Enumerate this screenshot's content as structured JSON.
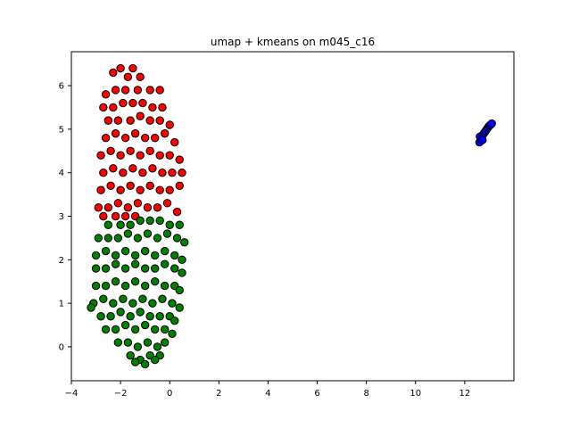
{
  "chart_data": {
    "type": "scatter",
    "title": "umap + kmeans on m045_c16",
    "xlabel": "",
    "ylabel": "",
    "xlim": [
      -4,
      14
    ],
    "ylim": [
      -0.78,
      6.78
    ],
    "xticks": [
      -4,
      -2,
      0,
      2,
      4,
      6,
      8,
      10,
      12
    ],
    "yticks": [
      0,
      1,
      2,
      3,
      4,
      5,
      6
    ],
    "grid": false,
    "legend": "none",
    "marker_edge_color": "#000000",
    "series": [
      {
        "color": "#ff0000",
        "points": [
          [
            -2.0,
            6.4
          ],
          [
            -1.5,
            6.4
          ],
          [
            -2.3,
            6.3
          ],
          [
            -1.7,
            6.2
          ],
          [
            -1.2,
            6.2
          ],
          [
            -2.6,
            5.8
          ],
          [
            -2.2,
            5.9
          ],
          [
            -1.8,
            5.9
          ],
          [
            -1.3,
            5.9
          ],
          [
            -0.8,
            5.9
          ],
          [
            -0.4,
            5.9
          ],
          [
            -2.7,
            5.5
          ],
          [
            -2.3,
            5.5
          ],
          [
            -1.9,
            5.6
          ],
          [
            -1.5,
            5.6
          ],
          [
            -1.1,
            5.6
          ],
          [
            -0.7,
            5.5
          ],
          [
            -0.3,
            5.5
          ],
          [
            -2.5,
            5.2
          ],
          [
            -2.1,
            5.2
          ],
          [
            -1.6,
            5.2
          ],
          [
            -1.2,
            5.3
          ],
          [
            -0.8,
            5.2
          ],
          [
            -0.4,
            5.2
          ],
          [
            0.0,
            5.1
          ],
          [
            -2.6,
            4.8
          ],
          [
            -2.2,
            4.9
          ],
          [
            -1.8,
            4.8
          ],
          [
            -1.4,
            4.9
          ],
          [
            -1.0,
            4.8
          ],
          [
            -0.6,
            4.8
          ],
          [
            -0.2,
            4.9
          ],
          [
            0.2,
            4.7
          ],
          [
            -2.8,
            4.4
          ],
          [
            -2.4,
            4.5
          ],
          [
            -2.0,
            4.4
          ],
          [
            -1.6,
            4.5
          ],
          [
            -1.2,
            4.4
          ],
          [
            -0.8,
            4.5
          ],
          [
            -0.4,
            4.4
          ],
          [
            0.0,
            4.4
          ],
          [
            0.4,
            4.3
          ],
          [
            -2.7,
            4.0
          ],
          [
            -2.3,
            4.1
          ],
          [
            -1.9,
            4.0
          ],
          [
            -1.5,
            4.1
          ],
          [
            -1.1,
            4.0
          ],
          [
            -0.7,
            4.1
          ],
          [
            -0.3,
            4.0
          ],
          [
            0.1,
            4.0
          ],
          [
            0.5,
            4.0
          ],
          [
            -2.8,
            3.6
          ],
          [
            -2.4,
            3.7
          ],
          [
            -2.0,
            3.6
          ],
          [
            -1.6,
            3.7
          ],
          [
            -1.2,
            3.6
          ],
          [
            -0.8,
            3.7
          ],
          [
            -0.4,
            3.6
          ],
          [
            0.0,
            3.6
          ],
          [
            0.4,
            3.7
          ],
          [
            -2.9,
            3.2
          ],
          [
            -2.5,
            3.2
          ],
          [
            -2.1,
            3.3
          ],
          [
            -1.7,
            3.2
          ],
          [
            -1.3,
            3.3
          ],
          [
            -0.9,
            3.2
          ],
          [
            -0.5,
            3.2
          ],
          [
            -0.1,
            3.3
          ],
          [
            0.3,
            3.1
          ],
          [
            -2.7,
            3.0
          ],
          [
            -2.2,
            3.0
          ],
          [
            -1.8,
            3.0
          ],
          [
            -1.4,
            3.0
          ]
        ]
      },
      {
        "color": "#008000",
        "points": [
          [
            -2.5,
            2.8
          ],
          [
            -2.0,
            2.8
          ],
          [
            -1.6,
            2.8
          ],
          [
            -1.2,
            2.9
          ],
          [
            -0.8,
            2.9
          ],
          [
            -0.4,
            2.9
          ],
          [
            0.0,
            2.8
          ],
          [
            0.4,
            2.8
          ],
          [
            -2.9,
            2.5
          ],
          [
            -2.5,
            2.5
          ],
          [
            -2.1,
            2.5
          ],
          [
            -1.7,
            2.6
          ],
          [
            -1.3,
            2.5
          ],
          [
            -0.9,
            2.6
          ],
          [
            -0.5,
            2.5
          ],
          [
            -0.1,
            2.6
          ],
          [
            0.3,
            2.5
          ],
          [
            0.6,
            2.4
          ],
          [
            -3.0,
            2.1
          ],
          [
            -2.6,
            2.2
          ],
          [
            -2.2,
            2.1
          ],
          [
            -1.8,
            2.2
          ],
          [
            -1.4,
            2.1
          ],
          [
            -1.0,
            2.2
          ],
          [
            -0.6,
            2.1
          ],
          [
            -0.2,
            2.2
          ],
          [
            0.2,
            2.1
          ],
          [
            0.5,
            2.0
          ],
          [
            -3.0,
            1.8
          ],
          [
            -2.6,
            1.8
          ],
          [
            -2.2,
            1.9
          ],
          [
            -1.8,
            1.8
          ],
          [
            -1.4,
            1.9
          ],
          [
            -1.0,
            1.8
          ],
          [
            -0.6,
            1.8
          ],
          [
            -0.2,
            1.9
          ],
          [
            0.2,
            1.8
          ],
          [
            0.5,
            1.7
          ],
          [
            -3.0,
            1.4
          ],
          [
            -2.6,
            1.4
          ],
          [
            -2.2,
            1.5
          ],
          [
            -1.8,
            1.4
          ],
          [
            -1.4,
            1.5
          ],
          [
            -1.0,
            1.4
          ],
          [
            -0.6,
            1.5
          ],
          [
            -0.2,
            1.4
          ],
          [
            0.2,
            1.4
          ],
          [
            0.4,
            1.3
          ],
          [
            -3.1,
            1.0
          ],
          [
            -2.7,
            1.1
          ],
          [
            -2.3,
            1.0
          ],
          [
            -1.9,
            1.1
          ],
          [
            -1.5,
            1.0
          ],
          [
            -1.1,
            1.1
          ],
          [
            -0.7,
            1.0
          ],
          [
            -0.3,
            1.1
          ],
          [
            0.1,
            1.0
          ],
          [
            0.4,
            0.9
          ],
          [
            -3.2,
            0.9
          ],
          [
            -2.8,
            0.7
          ],
          [
            -2.4,
            0.7
          ],
          [
            -2.0,
            0.8
          ],
          [
            -1.6,
            0.7
          ],
          [
            -1.2,
            0.8
          ],
          [
            -0.8,
            0.7
          ],
          [
            -0.4,
            0.7
          ],
          [
            0.0,
            0.7
          ],
          [
            0.2,
            0.6
          ],
          [
            -2.6,
            0.4
          ],
          [
            -2.2,
            0.4
          ],
          [
            -1.8,
            0.5
          ],
          [
            -1.4,
            0.4
          ],
          [
            -1.0,
            0.5
          ],
          [
            -0.6,
            0.4
          ],
          [
            -0.2,
            0.4
          ],
          [
            0.1,
            0.3
          ],
          [
            -2.1,
            0.1
          ],
          [
            -1.7,
            0.1
          ],
          [
            -1.3,
            0.0
          ],
          [
            -0.9,
            0.1
          ],
          [
            -0.5,
            0.0
          ],
          [
            -0.2,
            0.1
          ],
          [
            -1.6,
            -0.2
          ],
          [
            -1.2,
            -0.3
          ],
          [
            -0.8,
            -0.2
          ],
          [
            -0.4,
            -0.2
          ],
          [
            -1.4,
            -0.35
          ],
          [
            -1.0,
            -0.4
          ],
          [
            -0.6,
            -0.3
          ]
        ]
      },
      {
        "color": "#0000ff",
        "points": [
          [
            12.6,
            4.7
          ],
          [
            12.65,
            4.78
          ],
          [
            12.7,
            4.85
          ],
          [
            12.62,
            4.83
          ],
          [
            12.75,
            4.88
          ],
          [
            12.8,
            4.92
          ],
          [
            12.85,
            4.96
          ],
          [
            12.9,
            5.0
          ],
          [
            12.95,
            5.04
          ],
          [
            13.0,
            5.08
          ],
          [
            13.05,
            5.1
          ],
          [
            13.1,
            5.13
          ],
          [
            12.72,
            4.75
          ]
        ]
      }
    ]
  }
}
